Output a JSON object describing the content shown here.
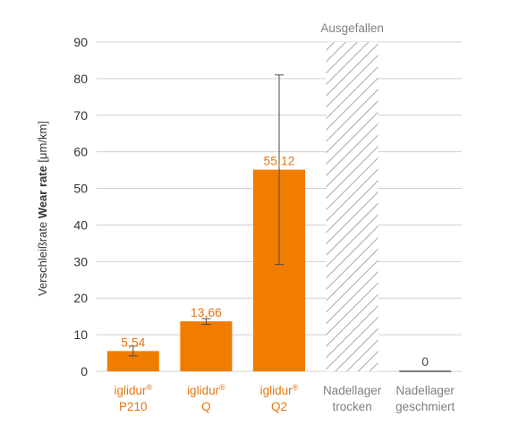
{
  "chart_data": {
    "type": "bar",
    "ylabel_regular": "Verschleißrate ",
    "ylabel_bold": "Wear rate",
    "ylabel_unit": " [μm/km]",
    "ylim": [
      0,
      90
    ],
    "yticks": [
      "0",
      "10",
      "20",
      "30",
      "40",
      "50",
      "60",
      "70",
      "80",
      "90"
    ],
    "grid": true,
    "categories": [
      {
        "line1": "iglidur",
        "sup": "®",
        "line2": "P210"
      },
      {
        "line1": "iglidur",
        "sup": "®",
        "line2": "Q"
      },
      {
        "line1": "iglidur",
        "sup": "®",
        "line2": "Q2"
      },
      {
        "line1": "Nadellager",
        "sup": "",
        "line2": "trocken"
      },
      {
        "line1": "Nadellager",
        "sup": "",
        "line2": "geschmiert"
      }
    ],
    "values": [
      5.54,
      13.66,
      55.12,
      null,
      0
    ],
    "value_labels": [
      "5,54",
      "13,66",
      "55,12",
      "",
      "0"
    ],
    "error_low": [
      4.2,
      12.8,
      29.2,
      null,
      null
    ],
    "error_high": [
      6.9,
      14.4,
      81.0,
      null,
      null
    ],
    "failed_category_index": 3,
    "failed_label": "Ausgefallen",
    "colors": {
      "bar": "#f07c00",
      "value_label": "#e87511",
      "category_label_orange": "#e87511",
      "category_label_gray": "#808080",
      "grid": "#d0d0d0",
      "hatch": "#a8a8a8"
    }
  }
}
